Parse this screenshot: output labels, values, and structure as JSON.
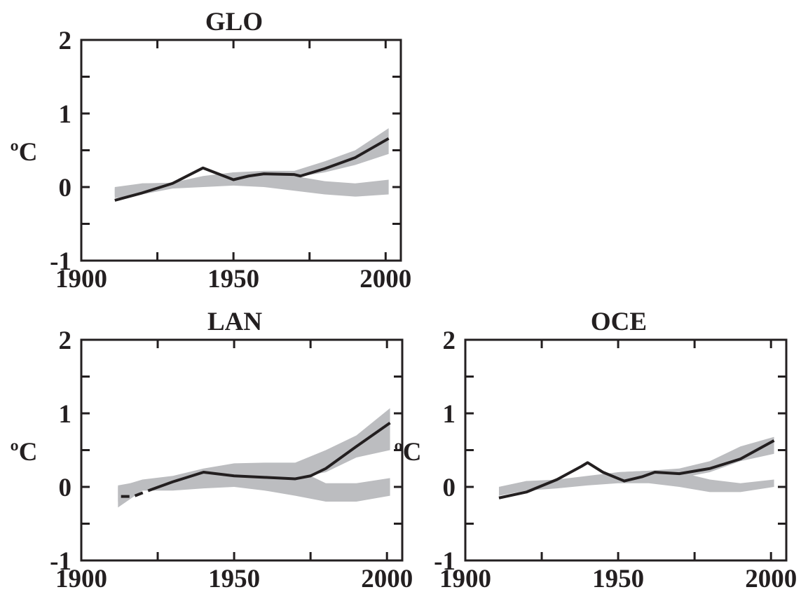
{
  "chart_data": [
    {
      "type": "line",
      "title": "GLO",
      "y_label": "ºC",
      "xlim": [
        1900,
        2005
      ],
      "xticks": [
        1900,
        1950,
        2000
      ],
      "minor_xticks": [
        1925,
        1975
      ],
      "ylim": [
        -1,
        2
      ],
      "yticks": [
        -1,
        0,
        1,
        2
      ],
      "minor_yticks": [
        -0.5,
        0.5,
        1.5
      ],
      "band_color": "#bcbdc0",
      "bands": [
        {
          "x": [
            1911,
            1920,
            1930,
            1940,
            1950,
            1960,
            1970,
            1980,
            1990,
            2001
          ],
          "lower": [
            -0.15,
            -0.1,
            -0.02,
            0.0,
            0.02,
            0.0,
            -0.05,
            -0.1,
            -0.13,
            -0.1
          ],
          "upper": [
            -0.02,
            0.05,
            0.05,
            0.12,
            0.2,
            0.2,
            0.15,
            0.08,
            0.05,
            0.1
          ]
        },
        {
          "x": [
            1911,
            1920,
            1930,
            1940,
            1950,
            1960,
            1970,
            1980,
            1990,
            2001
          ],
          "lower": [
            -0.12,
            -0.05,
            0.0,
            0.05,
            0.08,
            0.12,
            0.13,
            0.2,
            0.3,
            0.45
          ],
          "upper": [
            0.0,
            0.05,
            0.06,
            0.15,
            0.2,
            0.22,
            0.22,
            0.35,
            0.5,
            0.8
          ]
        }
      ],
      "series": [
        {
          "color": "#231f20",
          "dashed": false,
          "x": [
            1911,
            1920,
            1930,
            1940,
            1950,
            1955,
            1960,
            1970,
            1972,
            1980,
            1990,
            2001
          ],
          "values": [
            -0.18,
            -0.08,
            0.05,
            0.26,
            0.1,
            0.15,
            0.18,
            0.17,
            0.15,
            0.25,
            0.4,
            0.66
          ]
        }
      ]
    },
    {
      "type": "line",
      "title": "LAN",
      "y_label": "ºC",
      "xlim": [
        1900,
        2005
      ],
      "xticks": [
        1900,
        1950,
        2000
      ],
      "minor_xticks": [
        1925,
        1975
      ],
      "ylim": [
        -1,
        2
      ],
      "yticks": [
        -1,
        0,
        1,
        2
      ],
      "minor_yticks": [
        -0.5,
        0.5,
        1.5
      ],
      "band_color": "#bcbdc0",
      "bands": [
        {
          "x": [
            1912,
            1920,
            1930,
            1940,
            1950,
            1960,
            1970,
            1980,
            1990,
            2001
          ],
          "lower": [
            -0.28,
            -0.05,
            -0.05,
            -0.02,
            0.0,
            -0.05,
            -0.12,
            -0.2,
            -0.2,
            -0.12
          ],
          "upper": [
            0.02,
            0.08,
            0.12,
            0.2,
            0.3,
            0.3,
            0.25,
            0.05,
            0.05,
            0.12
          ]
        },
        {
          "x": [
            1912,
            1920,
            1930,
            1940,
            1950,
            1960,
            1970,
            1980,
            1990,
            2001
          ],
          "lower": [
            -0.2,
            -0.05,
            0.0,
            0.05,
            0.08,
            0.1,
            0.12,
            0.2,
            0.4,
            0.5
          ],
          "upper": [
            0.0,
            0.1,
            0.15,
            0.25,
            0.32,
            0.33,
            0.33,
            0.5,
            0.7,
            1.07
          ]
        }
      ],
      "series": [
        {
          "color": "#231f20",
          "dashed": true,
          "x": [
            1913,
            1917,
            1922
          ],
          "values": [
            -0.13,
            -0.13,
            -0.05
          ]
        },
        {
          "color": "#231f20",
          "dashed": false,
          "x": [
            1922,
            1930,
            1940,
            1950,
            1960,
            1970,
            1975,
            1980,
            1990,
            2001
          ],
          "values": [
            -0.05,
            0.07,
            0.2,
            0.15,
            0.13,
            0.11,
            0.15,
            0.25,
            0.55,
            0.87
          ]
        }
      ]
    },
    {
      "type": "line",
      "title": "OCE",
      "y_label": "ºC",
      "xlim": [
        1900,
        2005
      ],
      "xticks": [
        1900,
        1950,
        2000
      ],
      "minor_xticks": [
        1925,
        1975
      ],
      "ylim": [
        -1,
        2
      ],
      "yticks": [
        -1,
        0,
        1,
        2
      ],
      "minor_yticks": [
        -0.5,
        0.5,
        1.5
      ],
      "band_color": "#bcbdc0",
      "bands": [
        {
          "x": [
            1911,
            1920,
            1930,
            1940,
            1950,
            1960,
            1970,
            1980,
            1990,
            2001
          ],
          "lower": [
            -0.12,
            -0.05,
            -0.02,
            0.02,
            0.05,
            0.05,
            0.0,
            -0.07,
            -0.07,
            0.0
          ],
          "upper": [
            0.0,
            0.08,
            0.08,
            0.1,
            0.2,
            0.22,
            0.2,
            0.1,
            0.05,
            0.1
          ]
        },
        {
          "x": [
            1911,
            1920,
            1930,
            1940,
            1950,
            1960,
            1970,
            1980,
            1990,
            2001
          ],
          "lower": [
            -0.1,
            -0.03,
            0.0,
            0.05,
            0.08,
            0.12,
            0.12,
            0.2,
            0.35,
            0.45
          ],
          "upper": [
            0.0,
            0.08,
            0.1,
            0.15,
            0.2,
            0.22,
            0.25,
            0.35,
            0.55,
            0.68
          ]
        }
      ],
      "series": [
        {
          "color": "#231f20",
          "dashed": false,
          "x": [
            1911,
            1920,
            1930,
            1938,
            1940,
            1945,
            1952,
            1958,
            1962,
            1970,
            1980,
            1990,
            2001
          ],
          "values": [
            -0.15,
            -0.07,
            0.1,
            0.28,
            0.33,
            0.2,
            0.08,
            0.14,
            0.2,
            0.18,
            0.25,
            0.38,
            0.63
          ]
        }
      ]
    }
  ]
}
